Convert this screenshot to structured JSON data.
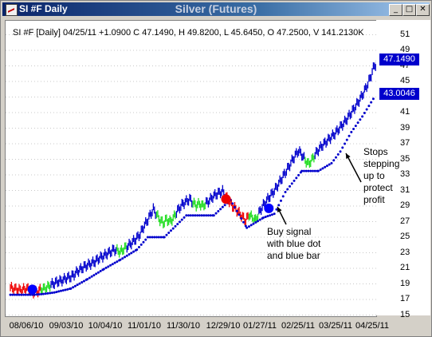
{
  "window": {
    "title": "SI #F Daily",
    "chart_title": "Silver (Futures)",
    "buttons": {
      "minimize": "_",
      "maximize": "□",
      "close": "✕"
    }
  },
  "chart": {
    "header": "SI #F [Daily] 04/25/11  +1.0900 C 47.1490, H 49.8200, L 45.6450, O 47.2500, V 141.2130K",
    "price_last": "47.1490",
    "stop_last": "43.0046",
    "annotation_buy": [
      "Buy signal",
      "with blue dot",
      "and blue bar"
    ],
    "annotation_stop": [
      "Stops",
      "stepping",
      "up to",
      "protect",
      "profit"
    ],
    "colors": {
      "up": "#0000cc",
      "neutral": "#22dd22",
      "down": "#ee0000",
      "signal": "#0000ff"
    }
  },
  "chart_data": {
    "type": "bar",
    "x_tick_labels": [
      "08/06/10",
      "09/03/10",
      "10/04/10",
      "11/01/10",
      "11/30/10",
      "12/29/10",
      "01/27/11",
      "02/25/11",
      "03/25/11",
      "04/25/11"
    ],
    "y_tick_labels": [
      "51",
      "49",
      "47",
      "45",
      "43",
      "41",
      "39",
      "37",
      "35",
      "33",
      "31",
      "29",
      "27",
      "25",
      "23",
      "21",
      "19",
      "17",
      "15"
    ],
    "ylim": [
      15,
      52
    ],
    "last": {
      "close": 47.149,
      "high": 49.82,
      "low": 45.645,
      "open": 47.25,
      "stop": 43.0046
    },
    "series": [
      {
        "values": [
          [
            0,
            18.5,
            "r"
          ],
          [
            3,
            18.4,
            "r"
          ],
          [
            6,
            18.3,
            "r"
          ],
          [
            9,
            18.2,
            "r"
          ],
          [
            12,
            18.3,
            "r"
          ],
          [
            15,
            18.4,
            "r"
          ],
          [
            18,
            18.2,
            "r"
          ],
          [
            21,
            17.9,
            "r"
          ],
          [
            24,
            18.0,
            "r"
          ],
          [
            28,
            18.3,
            "g"
          ],
          [
            31,
            18.4,
            "g"
          ],
          [
            34,
            18.6,
            "g"
          ],
          [
            37,
            18.9,
            "b"
          ],
          [
            40,
            19.1,
            "b"
          ],
          [
            43,
            19.3,
            "b"
          ],
          [
            46,
            19.4,
            "b"
          ],
          [
            49,
            19.6,
            "b"
          ],
          [
            52,
            19.8,
            "b"
          ],
          [
            55,
            19.9,
            "b"
          ],
          [
            58,
            20.2,
            "b"
          ],
          [
            61,
            20.6,
            "b"
          ],
          [
            64,
            20.9,
            "b"
          ],
          [
            67,
            21.2,
            "b"
          ],
          [
            70,
            21.4,
            "b"
          ],
          [
            73,
            21.6,
            "b"
          ],
          [
            76,
            21.8,
            "b"
          ],
          [
            79,
            22.1,
            "b"
          ],
          [
            82,
            22.4,
            "b"
          ],
          [
            85,
            22.6,
            "b"
          ],
          [
            88,
            22.9,
            "b"
          ],
          [
            91,
            23.1,
            "b"
          ],
          [
            94,
            23.4,
            "b"
          ],
          [
            97,
            23.3,
            "g"
          ],
          [
            100,
            23.1,
            "g"
          ],
          [
            103,
            23.5,
            "g"
          ],
          [
            106,
            23.8,
            "b"
          ],
          [
            109,
            24.1,
            "b"
          ],
          [
            112,
            24.5,
            "b"
          ],
          [
            115,
            24.9,
            "b"
          ],
          [
            118,
            25.4,
            "b"
          ],
          [
            121,
            26.3,
            "b"
          ],
          [
            124,
            27.0,
            "b"
          ],
          [
            127,
            27.8,
            "b"
          ],
          [
            130,
            28.6,
            "b"
          ],
          [
            133,
            27.9,
            "g"
          ],
          [
            136,
            27.2,
            "g"
          ],
          [
            139,
            26.8,
            "g"
          ],
          [
            142,
            27.3,
            "g"
          ],
          [
            145,
            27.0,
            "g"
          ],
          [
            148,
            27.4,
            "g"
          ],
          [
            151,
            28.2,
            "b"
          ],
          [
            154,
            28.8,
            "b"
          ],
          [
            157,
            29.3,
            "b"
          ],
          [
            160,
            29.6,
            "b"
          ],
          [
            163,
            29.9,
            "b"
          ],
          [
            166,
            29.4,
            "g"
          ],
          [
            169,
            29.1,
            "g"
          ],
          [
            172,
            29.3,
            "g"
          ],
          [
            175,
            29.0,
            "g"
          ],
          [
            178,
            29.4,
            "b"
          ],
          [
            181,
            29.7,
            "b"
          ],
          [
            184,
            30.2,
            "b"
          ],
          [
            187,
            30.5,
            "b"
          ],
          [
            190,
            30.7,
            "b"
          ],
          [
            193,
            30.9,
            "b"
          ],
          [
            196,
            30.2,
            "r"
          ],
          [
            199,
            29.6,
            "r"
          ],
          [
            202,
            29.0,
            "r"
          ],
          [
            205,
            28.6,
            "r"
          ],
          [
            208,
            28.1,
            "r"
          ],
          [
            211,
            27.6,
            "r"
          ],
          [
            214,
            27.1,
            "r"
          ],
          [
            217,
            27.9,
            "g"
          ],
          [
            220,
            27.5,
            "g"
          ],
          [
            223,
            27.2,
            "g"
          ],
          [
            226,
            28.1,
            "b"
          ],
          [
            229,
            28.9,
            "b"
          ],
          [
            232,
            29.5,
            "b"
          ],
          [
            235,
            30.1,
            "b"
          ],
          [
            238,
            30.6,
            "b"
          ],
          [
            241,
            31.2,
            "b"
          ],
          [
            244,
            31.9,
            "b"
          ],
          [
            247,
            32.6,
            "b"
          ],
          [
            250,
            33.3,
            "b"
          ],
          [
            253,
            34.0,
            "b"
          ],
          [
            256,
            34.8,
            "b"
          ],
          [
            259,
            35.5,
            "b"
          ],
          [
            262,
            36.1,
            "b"
          ],
          [
            265,
            35.6,
            "b"
          ],
          [
            268,
            34.9,
            "g"
          ],
          [
            271,
            34.4,
            "g"
          ],
          [
            274,
            34.9,
            "g"
          ],
          [
            277,
            35.6,
            "b"
          ],
          [
            280,
            36.2,
            "b"
          ],
          [
            283,
            36.7,
            "b"
          ],
          [
            286,
            37.1,
            "b"
          ],
          [
            289,
            37.5,
            "b"
          ],
          [
            292,
            37.9,
            "b"
          ],
          [
            295,
            38.3,
            "b"
          ],
          [
            298,
            38.8,
            "b"
          ],
          [
            301,
            39.3,
            "b"
          ],
          [
            304,
            39.8,
            "b"
          ],
          [
            307,
            40.4,
            "b"
          ],
          [
            310,
            41.0,
            "b"
          ],
          [
            313,
            41.6,
            "b"
          ],
          [
            316,
            42.3,
            "b"
          ],
          [
            319,
            43.0,
            "b"
          ],
          [
            322,
            43.8,
            "b"
          ],
          [
            325,
            44.7,
            "b"
          ],
          [
            328,
            45.8,
            "b"
          ],
          [
            331,
            47.1,
            "b"
          ]
        ]
      }
    ],
    "stops": [
      [
        0,
        17.6
      ],
      [
        20,
        17.6
      ],
      [
        30,
        17.7
      ],
      [
        40,
        17.9
      ],
      [
        55,
        18.4
      ],
      [
        70,
        19.6
      ],
      [
        85,
        20.9
      ],
      [
        100,
        22.1
      ],
      [
        115,
        23.4
      ],
      [
        125,
        25.0
      ],
      [
        140,
        25.0
      ],
      [
        160,
        27.8
      ],
      [
        185,
        27.8
      ],
      [
        200,
        29.8
      ],
      [
        215,
        26.2
      ],
      [
        230,
        27.5
      ],
      [
        240,
        28.0
      ],
      [
        250,
        30.8
      ],
      [
        265,
        33.5
      ],
      [
        280,
        33.5
      ],
      [
        292,
        34.5
      ],
      [
        300,
        36.0
      ],
      [
        310,
        38.5
      ],
      [
        320,
        40.5
      ],
      [
        331,
        43.0
      ]
    ],
    "signals": [
      {
        "x": 20,
        "y": 18.3,
        "color": "blue"
      },
      {
        "x": 196,
        "y": 29.9,
        "color": "red"
      },
      {
        "x": 235,
        "y": 28.7,
        "color": "blue"
      }
    ]
  }
}
